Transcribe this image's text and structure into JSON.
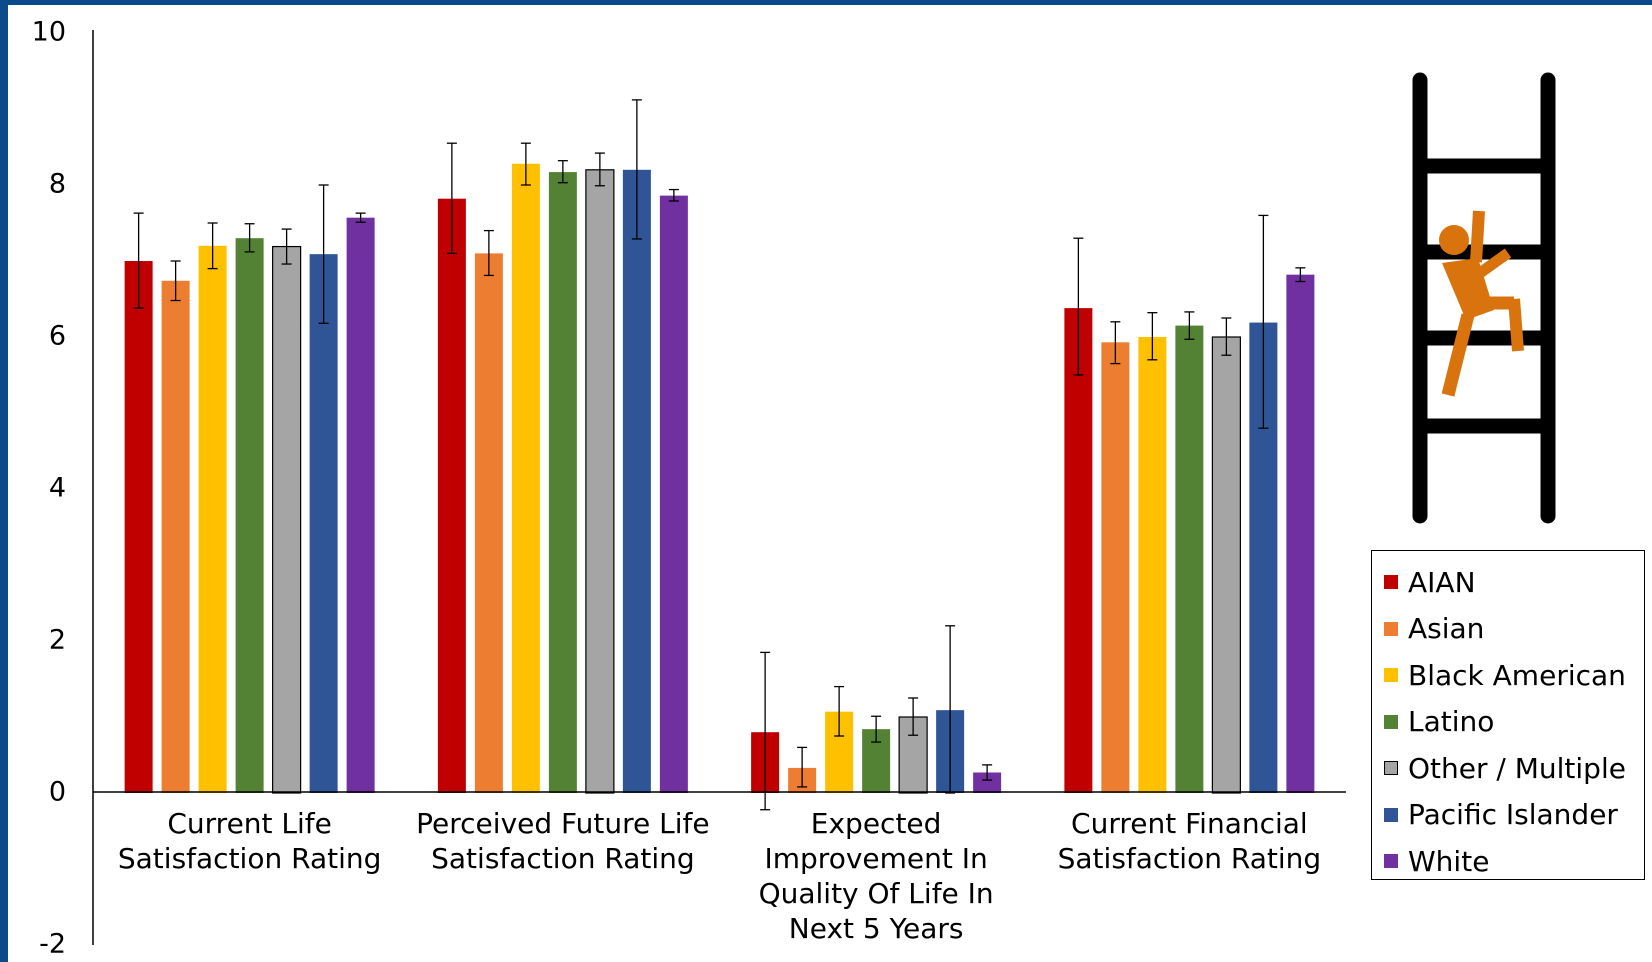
{
  "chart_data": {
    "type": "bar",
    "categories": [
      "Current Life Satisfaction Rating",
      "Perceived Future Life Satisfaction Rating",
      "Expected Improvement In Quality Of Life In Next 5 Years",
      "Current Financial Satisfaction Rating"
    ],
    "category_lines": [
      [
        "Current Life",
        "Satisfaction Rating"
      ],
      [
        "Perceived Future Life",
        "Satisfaction Rating"
      ],
      [
        "Expected",
        "Improvement In",
        "Quality Of Life In",
        "Next 5 Years"
      ],
      [
        "Current Financial",
        "Satisfaction Rating"
      ]
    ],
    "series": [
      {
        "name": "AIAN",
        "color": "#c00000",
        "values": [
          7.0,
          7.82,
          0.8,
          6.38
        ],
        "error_low": [
          6.38,
          7.1,
          -0.22,
          5.5
        ],
        "error_high": [
          7.63,
          8.55,
          1.85,
          7.3
        ]
      },
      {
        "name": "Asian",
        "color": "#ed7d31",
        "values": [
          6.74,
          7.1,
          0.33,
          5.93
        ],
        "error_low": [
          6.48,
          6.81,
          0.08,
          5.65
        ],
        "error_high": [
          7.0,
          7.4,
          0.6,
          6.2
        ]
      },
      {
        "name": "Black American",
        "color": "#ffc000",
        "values": [
          7.2,
          8.28,
          1.07,
          6.0
        ],
        "error_low": [
          6.9,
          8.0,
          0.75,
          5.7
        ],
        "error_high": [
          7.5,
          8.55,
          1.4,
          6.32
        ]
      },
      {
        "name": "Latino",
        "color": "#548235",
        "values": [
          7.3,
          8.17,
          0.84,
          6.15
        ],
        "error_low": [
          7.12,
          8.03,
          0.67,
          5.97
        ],
        "error_high": [
          7.49,
          8.32,
          1.01,
          6.33
        ]
      },
      {
        "name": "Other / Multiple",
        "color": "#a5a5a5",
        "values": [
          7.19,
          8.2,
          1.0,
          6.0
        ],
        "error_low": [
          6.96,
          7.99,
          0.76,
          5.76
        ],
        "error_high": [
          7.42,
          8.42,
          1.25,
          6.25
        ]
      },
      {
        "name": "Pacific Islander",
        "color": "#2f5597",
        "values": [
          7.09,
          8.2,
          1.09,
          6.19
        ],
        "error_low": [
          6.18,
          7.29,
          0.0,
          4.8
        ],
        "error_high": [
          8.0,
          9.12,
          2.2,
          7.6
        ]
      },
      {
        "name": "White",
        "color": "#7030a0",
        "values": [
          7.57,
          7.86,
          0.27,
          6.82
        ],
        "error_low": [
          7.51,
          7.79,
          0.17,
          6.73
        ],
        "error_high": [
          7.63,
          7.94,
          0.37,
          6.91
        ]
      }
    ],
    "y_ticks": [
      "10",
      "8",
      "6",
      "4",
      "2",
      "0",
      "-2"
    ],
    "ylim": [
      -2,
      10
    ],
    "xlabel": "",
    "ylabel": "",
    "title": "",
    "legend_position": "right",
    "grid": false
  },
  "icon": {
    "name": "person-climbing-ladder-icon",
    "ladder_color": "#000000",
    "person_color": "#d9730d"
  }
}
